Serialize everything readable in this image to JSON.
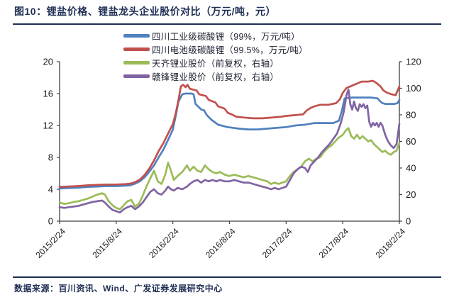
{
  "figure": {
    "title": "图10：锂盐价格、锂盐龙头企业股价对比（万元/吨，元）",
    "source": "数据来源：百川资讯、Wind、广发证券发展研究中心",
    "accent_color": "#1f2e54"
  },
  "chart_data": {
    "type": "line",
    "title": "锂盐价格、锂盐龙头企业股价对比",
    "grid": false,
    "legend_position": "top-center",
    "x_axis": {
      "unit": "months since 2015/2/24",
      "tick_positions_months": [
        0,
        6,
        12,
        18,
        24,
        30,
        36
      ],
      "tick_labels": [
        "2015/2/24",
        "2015/8/24",
        "2016/2/24",
        "2016/8/24",
        "2017/2/24",
        "2017/8/24",
        "2018/2/24"
      ],
      "label_rotation_deg": -45
    },
    "y_left": {
      "unit": "万元/吨",
      "ylim": [
        0,
        20
      ],
      "ticks": [
        0,
        4,
        8,
        12,
        16,
        20
      ]
    },
    "y_right": {
      "unit": "元",
      "ylim": [
        0,
        120
      ],
      "ticks": [
        0,
        20,
        40,
        60,
        80,
        100,
        120
      ]
    },
    "series": [
      {
        "name": "四川工业级碳酸锂（99%，万元/吨）",
        "color": "#4f81bd",
        "axis": "left",
        "points": [
          [
            0,
            4.1
          ],
          [
            1,
            4.15
          ],
          [
            2,
            4.2
          ],
          [
            3,
            4.3
          ],
          [
            4,
            4.35
          ],
          [
            5,
            4.4
          ],
          [
            6,
            4.4
          ],
          [
            7,
            4.45
          ],
          [
            7.5,
            4.5
          ],
          [
            8,
            4.7
          ],
          [
            8.5,
            5.0
          ],
          [
            9,
            5.5
          ],
          [
            9.5,
            6.2
          ],
          [
            10,
            7.0
          ],
          [
            10.5,
            8.0
          ],
          [
            11,
            9.0
          ],
          [
            11.5,
            10.2
          ],
          [
            12,
            11.5
          ],
          [
            12.3,
            13.2
          ],
          [
            12.6,
            15.0
          ],
          [
            13,
            15.9
          ],
          [
            13.3,
            16.0
          ],
          [
            14,
            16.0
          ],
          [
            14.2,
            15.9
          ],
          [
            14.4,
            14.7
          ],
          [
            15,
            14.0
          ],
          [
            15.3,
            13.9
          ],
          [
            15.6,
            13.3
          ],
          [
            16.1,
            12.7
          ],
          [
            16.8,
            12.1
          ],
          [
            17.8,
            11.8
          ],
          [
            19,
            11.6
          ],
          [
            20,
            11.5
          ],
          [
            21,
            11.5
          ],
          [
            22,
            11.6
          ],
          [
            23,
            11.7
          ],
          [
            24,
            11.8
          ],
          [
            25,
            12.0
          ],
          [
            26,
            12.1
          ],
          [
            27,
            12.3
          ],
          [
            28,
            12.3
          ],
          [
            29,
            12.3
          ],
          [
            29.6,
            12.6
          ],
          [
            29.9,
            13.8
          ],
          [
            30.2,
            15.4
          ],
          [
            31,
            15.5
          ],
          [
            32,
            15.5
          ],
          [
            33,
            15.5
          ],
          [
            33.7,
            15.4
          ],
          [
            33.9,
            15.1
          ],
          [
            34.2,
            14.8
          ],
          [
            34.5,
            14.7
          ],
          [
            35.5,
            14.7
          ],
          [
            35.8,
            14.8
          ],
          [
            36,
            15.2
          ]
        ]
      },
      {
        "name": "四川电池级碳酸锂（99.5%，万元/吨）",
        "color": "#c0504d",
        "axis": "left",
        "points": [
          [
            0,
            4.3
          ],
          [
            1,
            4.35
          ],
          [
            2,
            4.4
          ],
          [
            3,
            4.5
          ],
          [
            4,
            4.55
          ],
          [
            5,
            4.6
          ],
          [
            6,
            4.6
          ],
          [
            7,
            4.65
          ],
          [
            7.5,
            4.7
          ],
          [
            8,
            4.9
          ],
          [
            8.5,
            5.2
          ],
          [
            9,
            5.8
          ],
          [
            9.5,
            6.6
          ],
          [
            10,
            7.6
          ],
          [
            10.5,
            8.8
          ],
          [
            11,
            9.8
          ],
          [
            11.5,
            11.0
          ],
          [
            12,
            12.2
          ],
          [
            12.3,
            13.5
          ],
          [
            12.6,
            15.2
          ],
          [
            12.85,
            16.9
          ],
          [
            13.1,
            17.1
          ],
          [
            13.35,
            16.8
          ],
          [
            13.55,
            17.1
          ],
          [
            13.8,
            16.6
          ],
          [
            14.5,
            16.4
          ],
          [
            14.8,
            15.9
          ],
          [
            15.5,
            15.7
          ],
          [
            15.8,
            15.2
          ],
          [
            16.5,
            14.9
          ],
          [
            16.8,
            14.4
          ],
          [
            17.5,
            14.1
          ],
          [
            17.8,
            13.6
          ],
          [
            18.4,
            13.3
          ],
          [
            18.7,
            13.1
          ],
          [
            19.5,
            13.0
          ],
          [
            20.5,
            12.9
          ],
          [
            21.5,
            12.9
          ],
          [
            22.5,
            13.0
          ],
          [
            23.5,
            13.1
          ],
          [
            24,
            13.2
          ],
          [
            25,
            13.3
          ],
          [
            25.8,
            13.4
          ],
          [
            26.2,
            13.9
          ],
          [
            26.6,
            14.2
          ],
          [
            27,
            14.4
          ],
          [
            27.6,
            14.6
          ],
          [
            28.5,
            14.6
          ],
          [
            29.3,
            14.8
          ],
          [
            29.7,
            15.3
          ],
          [
            30,
            16.1
          ],
          [
            30.4,
            16.7
          ],
          [
            30.8,
            16.9
          ],
          [
            31.2,
            17.1
          ],
          [
            31.6,
            17.3
          ],
          [
            32,
            17.5
          ],
          [
            32.7,
            17.5
          ],
          [
            33.2,
            17.6
          ],
          [
            33.6,
            17.3
          ],
          [
            34,
            16.9
          ],
          [
            34.3,
            16.4
          ],
          [
            34.7,
            16.1
          ],
          [
            35.2,
            15.9
          ],
          [
            35.6,
            15.8
          ],
          [
            36,
            16.9
          ]
        ]
      },
      {
        "name": "天齐锂业股价（前复权，右轴）",
        "color": "#9bbb59",
        "axis": "right",
        "points": [
          [
            0,
            14
          ],
          [
            0.5,
            13
          ],
          [
            1,
            13.5
          ],
          [
            1.5,
            14.5
          ],
          [
            2,
            15
          ],
          [
            2.5,
            16
          ],
          [
            3,
            17
          ],
          [
            3.5,
            18.5
          ],
          [
            4,
            20
          ],
          [
            4.5,
            21
          ],
          [
            4.8,
            20
          ],
          [
            5.2,
            15
          ],
          [
            5.6,
            12
          ],
          [
            6,
            10
          ],
          [
            6.4,
            9
          ],
          [
            6.8,
            12
          ],
          [
            7.2,
            15
          ],
          [
            7.6,
            16
          ],
          [
            8,
            11
          ],
          [
            8.4,
            13
          ],
          [
            8.8,
            19
          ],
          [
            9.2,
            26
          ],
          [
            9.6,
            32
          ],
          [
            10,
            38
          ],
          [
            10.4,
            30
          ],
          [
            10.8,
            28
          ],
          [
            11.2,
            35
          ],
          [
            11.5,
            44
          ],
          [
            11.8,
            38
          ],
          [
            12.1,
            31
          ],
          [
            12.5,
            34
          ],
          [
            13,
            37
          ],
          [
            13.5,
            42
          ],
          [
            13.8,
            38
          ],
          [
            14.2,
            41
          ],
          [
            14.6,
            38
          ],
          [
            15,
            37
          ],
          [
            15.4,
            42
          ],
          [
            15.8,
            39
          ],
          [
            16.2,
            37
          ],
          [
            16.6,
            36
          ],
          [
            17,
            37
          ],
          [
            17.5,
            35
          ],
          [
            18,
            34
          ],
          [
            18.5,
            35
          ],
          [
            19,
            34
          ],
          [
            19.5,
            33
          ],
          [
            20,
            34
          ],
          [
            20.5,
            33
          ],
          [
            21,
            32
          ],
          [
            21.5,
            31
          ],
          [
            22,
            30
          ],
          [
            22.4,
            28
          ],
          [
            22.8,
            29
          ],
          [
            23.2,
            28
          ],
          [
            23.6,
            29
          ],
          [
            24,
            30
          ],
          [
            24.4,
            34
          ],
          [
            24.8,
            37
          ],
          [
            25.2,
            39
          ],
          [
            25.6,
            41
          ],
          [
            26,
            45
          ],
          [
            26.4,
            47
          ],
          [
            26.8,
            45
          ],
          [
            27.2,
            47
          ],
          [
            27.6,
            48
          ],
          [
            28,
            52
          ],
          [
            28.4,
            55
          ],
          [
            28.8,
            57
          ],
          [
            29.2,
            60
          ],
          [
            29.6,
            63
          ],
          [
            30,
            65
          ],
          [
            30.3,
            68
          ],
          [
            30.6,
            70
          ],
          [
            30.9,
            64
          ],
          [
            31.2,
            62
          ],
          [
            31.5,
            65
          ],
          [
            31.8,
            62
          ],
          [
            32.1,
            64
          ],
          [
            32.4,
            62
          ],
          [
            32.7,
            60
          ],
          [
            33,
            61
          ],
          [
            33.3,
            58
          ],
          [
            33.6,
            56
          ],
          [
            33.9,
            54
          ],
          [
            34.2,
            52
          ],
          [
            34.5,
            53
          ],
          [
            34.8,
            51
          ],
          [
            35.1,
            50
          ],
          [
            35.4,
            52
          ],
          [
            35.7,
            53
          ],
          [
            36,
            59
          ]
        ]
      },
      {
        "name": "赣锋锂业股价（前复权，右轴）",
        "color": "#8064a2",
        "axis": "right",
        "points": [
          [
            0,
            10.5
          ],
          [
            0.5,
            10
          ],
          [
            1,
            10.5
          ],
          [
            1.5,
            11
          ],
          [
            2,
            11.5
          ],
          [
            2.5,
            12.5
          ],
          [
            3,
            13.5
          ],
          [
            3.5,
            14.5
          ],
          [
            4,
            15
          ],
          [
            4.5,
            15.5
          ],
          [
            4.8,
            14
          ],
          [
            5.2,
            11
          ],
          [
            5.6,
            8.5
          ],
          [
            6,
            7.5
          ],
          [
            6.4,
            6.5
          ],
          [
            6.8,
            9
          ],
          [
            7.2,
            10.5
          ],
          [
            7.6,
            11.5
          ],
          [
            8,
            9
          ],
          [
            8.4,
            11
          ],
          [
            8.8,
            14
          ],
          [
            9.2,
            18
          ],
          [
            9.6,
            22
          ],
          [
            10,
            24
          ],
          [
            10.4,
            21
          ],
          [
            10.8,
            20
          ],
          [
            11.2,
            23
          ],
          [
            11.5,
            26
          ],
          [
            11.8,
            24
          ],
          [
            12.1,
            23
          ],
          [
            12.5,
            25
          ],
          [
            13,
            24
          ],
          [
            13.5,
            26
          ],
          [
            13.8,
            28
          ],
          [
            14.2,
            30
          ],
          [
            14.6,
            31
          ],
          [
            15,
            29
          ],
          [
            15.4,
            31
          ],
          [
            15.8,
            30
          ],
          [
            16.2,
            31
          ],
          [
            16.6,
            30
          ],
          [
            17,
            31
          ],
          [
            17.5,
            30
          ],
          [
            18,
            30
          ],
          [
            18.5,
            31
          ],
          [
            19,
            30
          ],
          [
            19.5,
            29
          ],
          [
            20,
            29
          ],
          [
            20.5,
            28
          ],
          [
            21,
            27
          ],
          [
            21.5,
            26
          ],
          [
            22,
            25
          ],
          [
            22.4,
            24
          ],
          [
            22.8,
            25
          ],
          [
            23.2,
            24
          ],
          [
            23.6,
            25
          ],
          [
            24,
            26
          ],
          [
            24.4,
            31
          ],
          [
            24.8,
            36
          ],
          [
            25.2,
            39
          ],
          [
            25.6,
            41
          ],
          [
            26,
            40
          ],
          [
            26.3,
            37
          ],
          [
            26.6,
            42
          ],
          [
            27,
            45
          ],
          [
            27.4,
            48
          ],
          [
            27.8,
            52
          ],
          [
            28.2,
            55
          ],
          [
            28.6,
            58
          ],
          [
            29,
            62
          ],
          [
            29.4,
            66
          ],
          [
            29.8,
            74
          ],
          [
            30.1,
            82
          ],
          [
            30.4,
            95
          ],
          [
            30.6,
            99
          ],
          [
            30.8,
            88
          ],
          [
            31,
            84
          ],
          [
            31.2,
            90
          ],
          [
            31.4,
            85
          ],
          [
            31.6,
            83
          ],
          [
            31.8,
            88
          ],
          [
            32,
            86
          ],
          [
            32.2,
            88
          ],
          [
            32.4,
            85
          ],
          [
            32.6,
            87
          ],
          [
            32.8,
            75
          ],
          [
            33,
            71
          ],
          [
            33.2,
            74
          ],
          [
            33.4,
            72
          ],
          [
            33.6,
            74
          ],
          [
            33.8,
            71
          ],
          [
            34,
            74
          ],
          [
            34.2,
            72
          ],
          [
            34.5,
            65
          ],
          [
            34.8,
            60
          ],
          [
            35.1,
            57
          ],
          [
            35.4,
            55
          ],
          [
            35.7,
            58
          ],
          [
            36,
            73
          ]
        ]
      }
    ]
  }
}
